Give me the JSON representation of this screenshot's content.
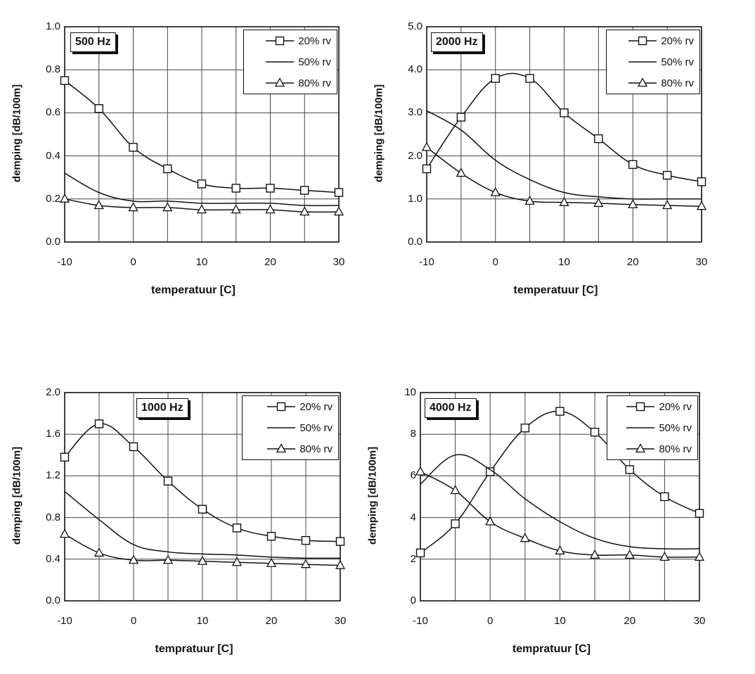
{
  "chart_data": [
    {
      "type": "line",
      "title": "500 Hz",
      "xlabel": "temperatuur [C]",
      "ylabel": "demping [dB/100m]",
      "x": [
        -10,
        -5,
        0,
        5,
        10,
        15,
        20,
        25,
        30
      ],
      "xticks": [
        "-10",
        "0",
        "10",
        "20",
        "30"
      ],
      "ylim": [
        0,
        1.0
      ],
      "yticks": [
        "0.0",
        "0.2",
        "0.4",
        "0.6",
        "0.8",
        "1.0"
      ],
      "grid": true,
      "legend": "top-right",
      "series": [
        {
          "name": "20% rv",
          "marker": "square",
          "values": [
            0.75,
            0.62,
            0.44,
            0.34,
            0.27,
            0.25,
            0.25,
            0.24,
            0.23
          ]
        },
        {
          "name": "50% rv",
          "marker": "none",
          "values": [
            0.32,
            0.23,
            0.19,
            0.19,
            0.18,
            0.18,
            0.18,
            0.17,
            0.17
          ]
        },
        {
          "name": "80% rv",
          "marker": "triangle",
          "values": [
            0.2,
            0.17,
            0.16,
            0.16,
            0.15,
            0.15,
            0.15,
            0.14,
            0.14
          ]
        }
      ]
    },
    {
      "type": "line",
      "title": "2000 Hz",
      "xlabel": "temperatuur [C]",
      "ylabel": "demping [dB/100m]",
      "x": [
        -10,
        -5,
        0,
        5,
        10,
        15,
        20,
        25,
        30
      ],
      "xticks": [
        "-10",
        "0",
        "10",
        "20",
        "30"
      ],
      "ylim": [
        0,
        5.0
      ],
      "yticks": [
        "0.0",
        "1.0",
        "2.0",
        "3.0",
        "4.0",
        "5.0"
      ],
      "grid": true,
      "legend": "top-right",
      "series": [
        {
          "name": "20% rv",
          "marker": "square",
          "values": [
            1.7,
            2.9,
            3.8,
            3.8,
            3.0,
            2.4,
            1.8,
            1.55,
            1.4
          ]
        },
        {
          "name": "50% rv",
          "marker": "none",
          "values": [
            3.05,
            2.6,
            1.9,
            1.45,
            1.15,
            1.05,
            1.0,
            1.0,
            1.0
          ]
        },
        {
          "name": "80% rv",
          "marker": "triangle",
          "values": [
            2.2,
            1.6,
            1.15,
            0.95,
            0.92,
            0.9,
            0.87,
            0.85,
            0.83
          ]
        }
      ]
    },
    {
      "type": "line",
      "title": "1000 Hz",
      "xlabel": "tempratuur [C]",
      "ylabel": "demping [dB/100m]",
      "x": [
        -10,
        -5,
        0,
        5,
        10,
        15,
        20,
        25,
        30
      ],
      "xticks": [
        "-10",
        "0",
        "10",
        "20",
        "30"
      ],
      "ylim": [
        0,
        2.0
      ],
      "yticks": [
        "0.0",
        "0.4",
        "0.8",
        "1.2",
        "1.6",
        "2.0"
      ],
      "grid": true,
      "legend": "top-right",
      "series": [
        {
          "name": "20% rv",
          "marker": "square",
          "values": [
            1.38,
            1.7,
            1.48,
            1.15,
            0.88,
            0.7,
            0.62,
            0.58,
            0.57
          ]
        },
        {
          "name": "50% rv",
          "marker": "none",
          "values": [
            1.05,
            0.78,
            0.54,
            0.47,
            0.45,
            0.44,
            0.42,
            0.41,
            0.41
          ]
        },
        {
          "name": "80% rv",
          "marker": "triangle",
          "values": [
            0.64,
            0.46,
            0.39,
            0.39,
            0.38,
            0.37,
            0.36,
            0.35,
            0.34
          ]
        }
      ]
    },
    {
      "type": "line",
      "title": "4000 Hz",
      "xlabel": "tempratuur [C]",
      "ylabel": "demping [dB/100m]",
      "x": [
        -10,
        -5,
        0,
        5,
        10,
        15,
        20,
        25,
        30
      ],
      "xticks": [
        "-10",
        "0",
        "10",
        "20",
        "30"
      ],
      "ylim": [
        0,
        10
      ],
      "yticks": [
        "0",
        "2",
        "4",
        "6",
        "8",
        "10"
      ],
      "grid": true,
      "legend": "top-right",
      "series": [
        {
          "name": "20% rv",
          "marker": "square",
          "values": [
            2.3,
            3.7,
            6.2,
            8.3,
            9.1,
            8.1,
            6.3,
            5.0,
            4.2
          ]
        },
        {
          "name": "50% rv",
          "marker": "none",
          "values": [
            5.6,
            7.0,
            6.3,
            4.9,
            3.8,
            3.0,
            2.6,
            2.5,
            2.5
          ]
        },
        {
          "name": "80% rv",
          "marker": "triangle",
          "values": [
            6.2,
            5.3,
            3.8,
            3.0,
            2.4,
            2.2,
            2.2,
            2.1,
            2.1
          ]
        }
      ]
    }
  ]
}
